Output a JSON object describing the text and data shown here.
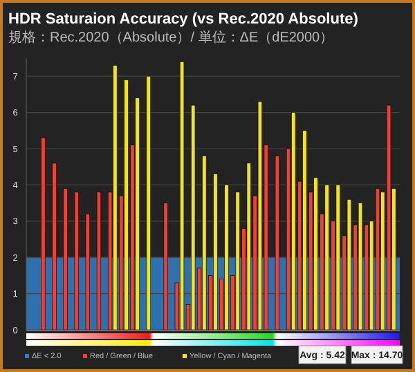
{
  "chart_data": {
    "type": "bar",
    "title": "HDR Saturaion Accuracy (vs Rec.2020 Absolute)",
    "subtitle": "規格：Rec.2020（Absolute）/ 単位：ΔE（dE2000）",
    "categories": [
      null,
      null,
      null,
      null,
      null,
      null,
      null,
      null,
      null,
      null,
      null,
      null,
      null,
      null,
      null,
      null,
      null,
      null,
      null,
      null,
      null,
      null,
      null,
      null,
      null,
      null,
      null,
      null,
      null,
      null,
      null,
      null,
      null
    ],
    "series": [
      {
        "name": "Red / Green / Blue",
        "color": "#ee4136",
        "values": [
          null,
          5.3,
          4.6,
          3.9,
          3.8,
          3.2,
          3.8,
          3.8,
          3.7,
          5.1,
          null,
          null,
          3.5,
          1.3,
          0.7,
          1.7,
          1.5,
          1.4,
          1.5,
          2.8,
          3.7,
          5.1,
          4.8,
          5.0,
          4.1,
          3.8,
          3.2,
          3.0,
          2.6,
          2.9,
          2.9,
          3.9,
          6.2
        ]
      },
      {
        "name": "Yellow / Cyan / Magenta",
        "color": "#f2e224",
        "values": [
          null,
          null,
          null,
          null,
          null,
          null,
          null,
          7.3,
          6.9,
          6.4,
          7.0,
          null,
          null,
          7.4,
          6.2,
          4.8,
          4.3,
          4.0,
          3.8,
          4.6,
          6.3,
          null,
          null,
          6.0,
          5.5,
          4.2,
          4.0,
          4.0,
          3.6,
          3.5,
          3.0,
          3.8,
          3.9
        ]
      }
    ],
    "ylim": [
      0,
      7.5
    ],
    "yticks": [
      0,
      1,
      2,
      3,
      4,
      5,
      6,
      7
    ],
    "grid": "y",
    "bands": [
      {
        "axis": "y",
        "from": 0,
        "to": 2,
        "label": "ΔE < 2.0",
        "color": "#2f7fc8"
      }
    ],
    "legend": "bottom left",
    "annotations": [
      "Avg : 5.42",
      "Max : 14.70"
    ]
  }
}
